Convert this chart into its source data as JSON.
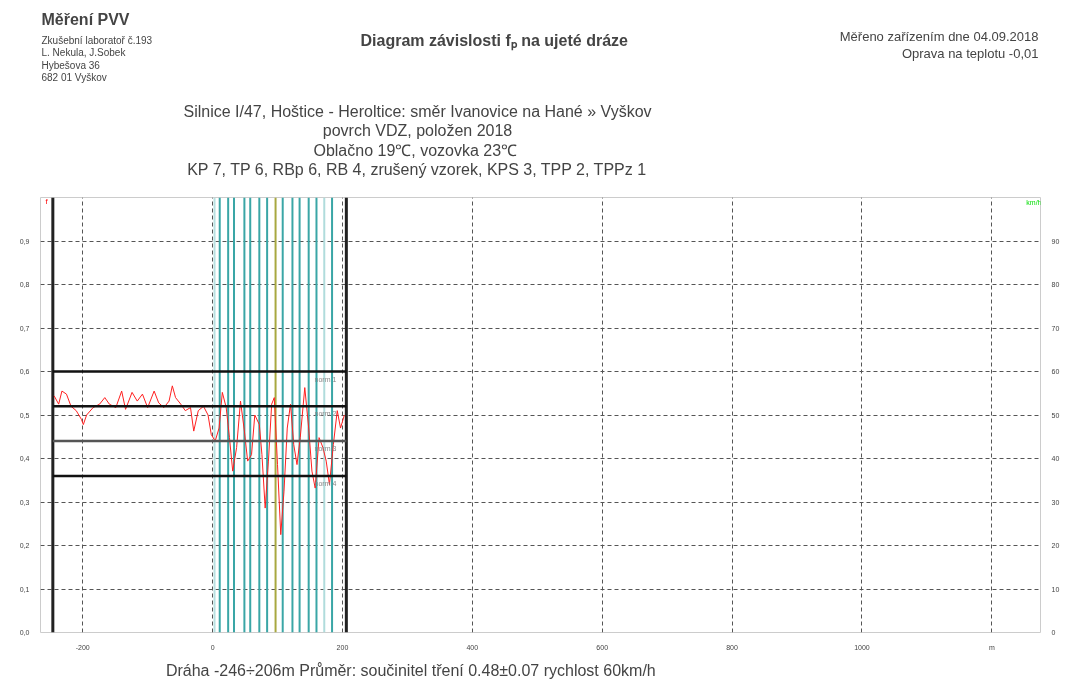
{
  "chart_data": {
    "type": "line",
    "title": "Diagram závislosti fₚ na ujeté dráze",
    "subtitle": "Silnice I/47, Hoštice - Heroltice: směr Ivanovice na Hané » Vyškov\npovrch VDZ, položen 2018\nOblačno 19℃,  vozovka 23℃\nKP 7, TP 6, RBp 6, RB 4, zrušený vzorek, KPS 3, TPP 2, TPPz 1",
    "ylabel": "f",
    "y2label": "km/h",
    "annotations": [
      "Měření PVV",
      "Zkušební laboratoř č.193\nL. Nekula, J.Sobek\nHybešova 36\n682 01 Vyškov",
      "Měřeno zařízením dne 04.09.2018\nOprava na teplotu -0,01",
      "Dráha -246÷206m   Průměr: součinitel tření 0.48±0.07  rychlost 60km/h"
    ],
    "series": [
      {
        "color": "#ff2020",
        "x": [
          -244,
          -237,
          -232,
          -225,
          -218,
          -210,
          -202,
          -199,
          -194,
          -184,
          -174,
          -166,
          -159,
          -149,
          -140,
          -134,
          -124,
          -116,
          -108,
          -100,
          -90,
          -83,
          -75,
          -67,
          -62,
          -57,
          -49,
          -42,
          -34,
          -29,
          -22,
          -14,
          -7,
          -2,
          4,
          10,
          15,
          21,
          26,
          31,
          37,
          43,
          49,
          54,
          60,
          65,
          72,
          76,
          81,
          86,
          91,
          95,
          100,
          105,
          110,
          115,
          120,
          125,
          130,
          135,
          142,
          148,
          153,
          158,
          164,
          170,
          175,
          180,
          186,
          192,
          197,
          203
        ],
        "values": [
          0.544,
          0.525,
          0.555,
          0.548,
          0.52,
          0.51,
          0.49,
          0.478,
          0.5,
          0.517,
          0.525,
          0.54,
          0.525,
          0.517,
          0.555,
          0.513,
          0.552,
          0.532,
          0.548,
          0.517,
          0.555,
          0.528,
          0.517,
          0.532,
          0.567,
          0.54,
          0.525,
          0.51,
          0.517,
          0.463,
          0.51,
          0.52,
          0.5,
          0.455,
          0.44,
          0.47,
          0.552,
          0.517,
          0.448,
          0.371,
          0.425,
          0.532,
          0.463,
          0.394,
          0.409,
          0.5,
          0.478,
          0.409,
          0.286,
          0.394,
          0.525,
          0.54,
          0.386,
          0.225,
          0.325,
          0.47,
          0.525,
          0.432,
          0.386,
          0.448,
          0.563,
          0.47,
          0.371,
          0.332,
          0.448,
          0.425,
          0.394,
          0.34,
          0.432,
          0.51,
          0.47,
          0.5
        ]
      },
      {
        "name": "norm 1",
        "color": "#111111",
        "x": [
          -246,
          206
        ],
        "values": [
          0.6,
          0.6
        ]
      },
      {
        "name": "norm 2",
        "color": "#111111",
        "x": [
          -246,
          206
        ],
        "values": [
          0.52,
          0.52
        ]
      },
      {
        "name": "norm 3",
        "color": "#555555",
        "x": [
          -246,
          206
        ],
        "values": [
          0.44,
          0.44
        ]
      },
      {
        "name": "norm 4",
        "color": "#111111",
        "x": [
          -246,
          206
        ],
        "values": [
          0.36,
          0.36
        ]
      }
    ],
    "ref_lines": [
      {
        "axis": "x",
        "value": -246,
        "color": "#222222"
      },
      {
        "axis": "x",
        "value": 206,
        "color": "#222222"
      },
      {
        "axis": "x",
        "value": 3,
        "color": "#b8e0e0"
      },
      {
        "axis": "x",
        "value": 11,
        "color": "#3aa6a6"
      },
      {
        "axis": "x",
        "value": 24,
        "color": "#3aa6a6"
      },
      {
        "axis": "x",
        "value": 33,
        "color": "#3aa6a6"
      },
      {
        "axis": "x",
        "value": 49,
        "color": "#3aa6a6"
      },
      {
        "axis": "x",
        "value": 58,
        "color": "#3aa6a6"
      },
      {
        "axis": "x",
        "value": 72,
        "color": "#3aa6a6"
      },
      {
        "axis": "x",
        "value": 84,
        "color": "#3aa6a6"
      },
      {
        "axis": "x",
        "value": 97,
        "color": "#a8a840"
      },
      {
        "axis": "x",
        "value": 108,
        "color": "#3aa6a6"
      },
      {
        "axis": "x",
        "value": 123,
        "color": "#3aa6a6"
      },
      {
        "axis": "x",
        "value": 134,
        "color": "#3aa6a6"
      },
      {
        "axis": "x",
        "value": 148,
        "color": "#3aa6a6"
      },
      {
        "axis": "x",
        "value": 160,
        "color": "#3aa6a6"
      },
      {
        "axis": "x",
        "value": 172,
        "color": "#b0dcdc"
      },
      {
        "axis": "x",
        "value": 184,
        "color": "#3aa6a6"
      }
    ],
    "xlim": [
      -265,
      1275
    ],
    "xticks": [
      -200,
      0,
      200,
      400,
      600,
      800,
      1000,
      {
        "value": 1200,
        "label": "m"
      }
    ],
    "ylim": [
      0,
      1
    ],
    "yticks": [
      {
        "value": 0,
        "label": "0,0"
      },
      {
        "value": 0.1,
        "label": "0,1"
      },
      {
        "value": 0.2,
        "label": "0,2"
      },
      {
        "value": 0.3,
        "label": "0,3"
      },
      {
        "value": 0.4,
        "label": "0,4"
      },
      {
        "value": 0.5,
        "label": "0,5"
      },
      {
        "value": 0.6,
        "label": "0,6"
      },
      {
        "value": 0.7,
        "label": "0,7"
      },
      {
        "value": 0.8,
        "label": "0,8"
      },
      {
        "value": 0.9,
        "label": "0,9"
      },
      {
        "value": 1,
        "label": null
      }
    ],
    "y2lim": [
      0,
      100
    ],
    "y2ticks": [
      0,
      10,
      20,
      30,
      40,
      50,
      60,
      70,
      80,
      90
    ],
    "grid": true,
    "marker": "none",
    "line_style": "solid"
  }
}
